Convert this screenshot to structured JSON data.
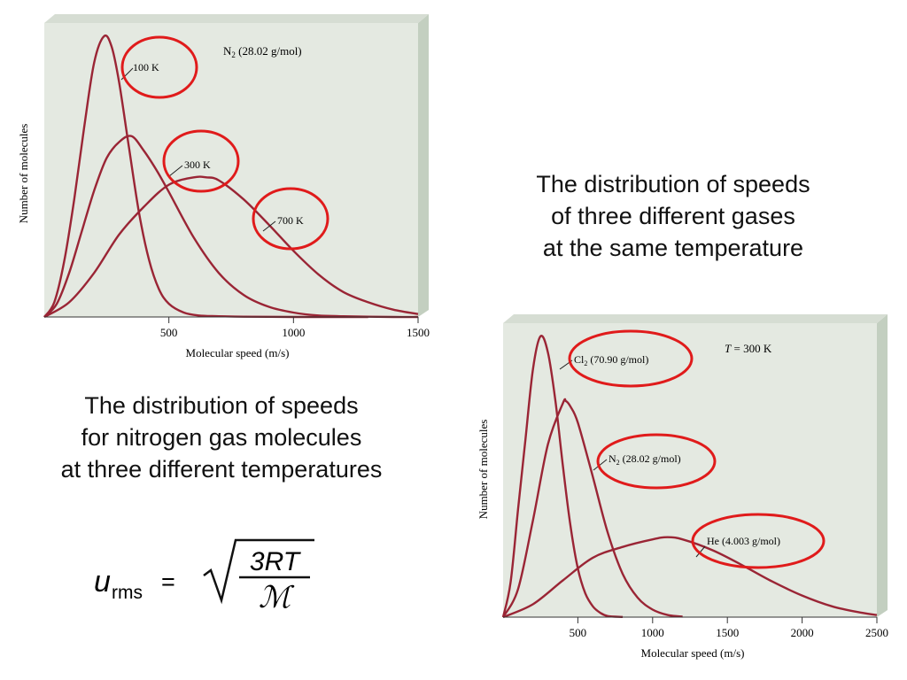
{
  "slide": {
    "caption_left": [
      "The distribution of speeds",
      "for nitrogen gas molecules",
      "at three different temperatures"
    ],
    "caption_right": [
      "The distribution of speeds",
      "of three different gases",
      "at the same temperature"
    ],
    "formula": {
      "lhs": "u",
      "lhs_subscript": "rms",
      "equals": "=",
      "numerator": "3RT",
      "denominator": "ℳ"
    }
  },
  "colors": {
    "panel": "#e4e9e1",
    "panel_side": "#c3cfc0",
    "curve": "#9a2535",
    "highlight_circle": "#e01b1b"
  },
  "chart_data": [
    {
      "type": "line",
      "annotation": "N₂ (28.02 g/mol)",
      "xlabel": "Molecular speed (m/s)",
      "ylabel": "Number of molecules",
      "xlim": [
        0,
        1500
      ],
      "xticks": [
        "500",
        "1000",
        "1500"
      ],
      "series": [
        {
          "name": "100 K",
          "x": [
            0,
            40,
            80,
            120,
            160,
            200,
            240,
            270,
            300,
            340,
            380,
            420,
            460,
            500,
            560,
            620,
            700,
            800,
            900,
            1000,
            1100,
            1200,
            1300
          ],
          "y": [
            0,
            10,
            38,
            80,
            129,
            173,
            191,
            184,
            160,
            115,
            71,
            39,
            19,
            9,
            3,
            1,
            0.5,
            0.2,
            0.1,
            0,
            0,
            0,
            0
          ]
        },
        {
          "name": "300 K",
          "x": [
            0,
            50,
            100,
            150,
            200,
            250,
            300,
            350,
            400,
            450,
            500,
            600,
            700,
            800,
            900,
            1000,
            1100,
            1200,
            1300,
            1400,
            1500
          ],
          "y": [
            0,
            9,
            30,
            58,
            86,
            108,
            119,
            123,
            113,
            100,
            85,
            54,
            30,
            15,
            7,
            3,
            1,
            0.5,
            0.2,
            0,
            0
          ]
        },
        {
          "name": "700 K",
          "x": [
            0,
            100,
            200,
            300,
            400,
            500,
            600,
            650,
            700,
            800,
            900,
            1000,
            1100,
            1200,
            1300,
            1400,
            1500
          ],
          "y": [
            0,
            10,
            30,
            56,
            75,
            90,
            95,
            95,
            93,
            80,
            63,
            45,
            29,
            17,
            10,
            5,
            2
          ]
        }
      ],
      "circled_labels": [
        "100 K",
        "300 K",
        "700 K"
      ]
    },
    {
      "type": "line",
      "annotation": "T = 300 K",
      "xlabel": "Molecular speed (m/s)",
      "ylabel": "Number of molecules",
      "xlim": [
        0,
        2500
      ],
      "xticks": [
        "500",
        "1000",
        "1500",
        "2000",
        "2500"
      ],
      "series": [
        {
          "name": "Cl₂ (70.90 g/mol)",
          "x": [
            0,
            50,
            100,
            150,
            200,
            250,
            300,
            350,
            400,
            450,
            500,
            550,
            600,
            650,
            700,
            800
          ],
          "y": [
            0,
            32,
            100,
            165,
            230,
            260,
            245,
            200,
            140,
            85,
            45,
            22,
            10,
            4,
            1,
            0.2
          ]
        },
        {
          "name": "N₂ (28.02 g/mol)",
          "x": [
            0,
            100,
            200,
            300,
            400,
            420,
            450,
            500,
            600,
            700,
            800,
            900,
            1000,
            1100,
            1200
          ],
          "y": [
            0,
            26,
            90,
            160,
            198,
            200,
            195,
            180,
            130,
            78,
            40,
            18,
            7,
            2,
            0.5
          ]
        },
        {
          "name": "He (4.003 g/mol)",
          "x": [
            0,
            200,
            400,
            600,
            800,
            1000,
            1100,
            1200,
            1400,
            1600,
            1800,
            2000,
            2200,
            2400,
            2500
          ],
          "y": [
            0,
            12,
            34,
            55,
            65,
            72,
            74,
            72,
            62,
            48,
            33,
            20,
            10,
            4,
            2
          ]
        }
      ],
      "circled_labels": [
        "Cl₂ (70.90 g/mol)",
        "N₂ (28.02 g/mol)",
        "He (4.003 g/mol)"
      ]
    }
  ]
}
